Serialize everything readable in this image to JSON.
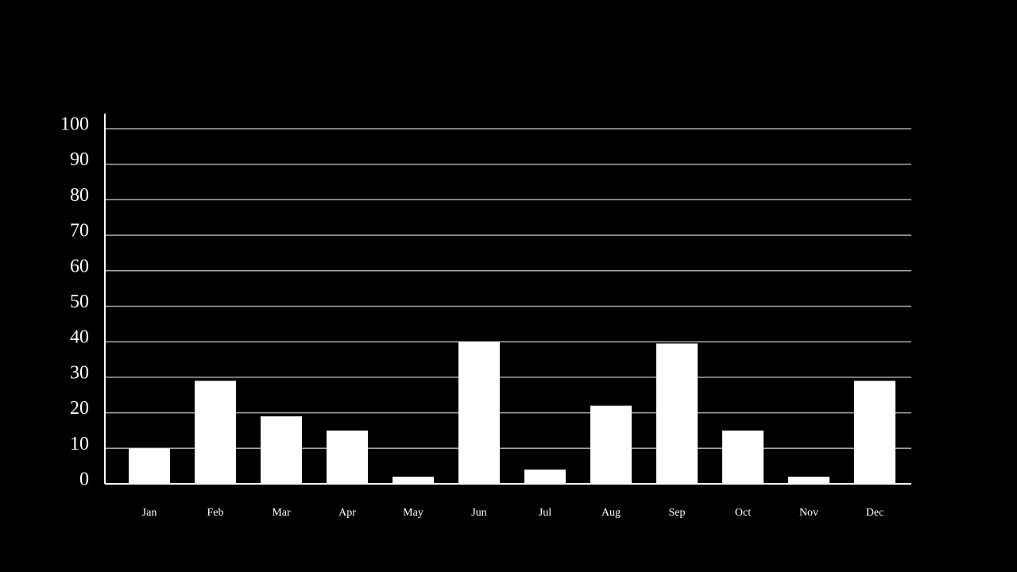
{
  "chart_data": {
    "type": "bar",
    "categories": [
      "Jan",
      "Feb",
      "Mar",
      "Apr",
      "May",
      "Jun",
      "Jul",
      "Aug",
      "Sep",
      "Oct",
      "Nov",
      "Dec"
    ],
    "values": [
      10,
      29,
      19,
      15,
      2,
      40,
      4,
      22,
      39.5,
      15,
      2,
      29
    ],
    "color": "#ffffff",
    "ylim": [
      0,
      100
    ],
    "yticks": [
      0,
      10,
      20,
      30,
      40,
      50,
      60,
      70,
      80,
      90,
      100
    ],
    "grid": true
  }
}
